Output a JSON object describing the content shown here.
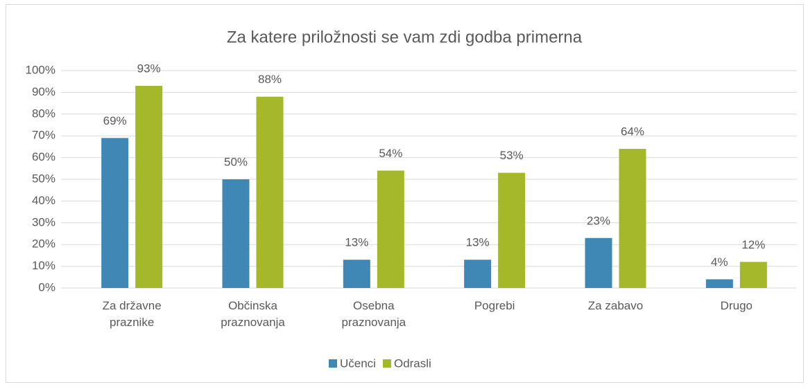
{
  "chart_data": {
    "type": "bar",
    "title": "Za katere priložnosti se vam zdi godba primerna",
    "categories": [
      "Za državne praznike",
      "Občinska praznovanja",
      "Osebna praznovanja",
      "Pogrebi",
      "Za zabavo",
      "Drugo"
    ],
    "series": [
      {
        "name": "Učenci",
        "color": "#3f87b5",
        "values": [
          69,
          50,
          13,
          13,
          23,
          4
        ],
        "value_labels": [
          "69%",
          "50%",
          "13%",
          "13%",
          "23%",
          "4%"
        ]
      },
      {
        "name": "Odrasli",
        "color": "#a4b82a",
        "values": [
          93,
          88,
          54,
          53,
          64,
          12
        ],
        "value_labels": [
          "93%",
          "88%",
          "54%",
          "53%",
          "64%",
          "12%"
        ]
      }
    ],
    "ylim": [
      0,
      100
    ],
    "yticks": [
      {
        "value": 0,
        "label": "0%"
      },
      {
        "value": 10,
        "label": "10%"
      },
      {
        "value": 20,
        "label": "20%"
      },
      {
        "value": 30,
        "label": "30%"
      },
      {
        "value": 40,
        "label": "40%"
      },
      {
        "value": 50,
        "label": "50%"
      },
      {
        "value": 60,
        "label": "60%"
      },
      {
        "value": 70,
        "label": "70%"
      },
      {
        "value": 80,
        "label": "80%"
      },
      {
        "value": 90,
        "label": "90%"
      },
      {
        "value": 100,
        "label": "100%"
      }
    ],
    "grid": true,
    "legend": "bottom"
  }
}
